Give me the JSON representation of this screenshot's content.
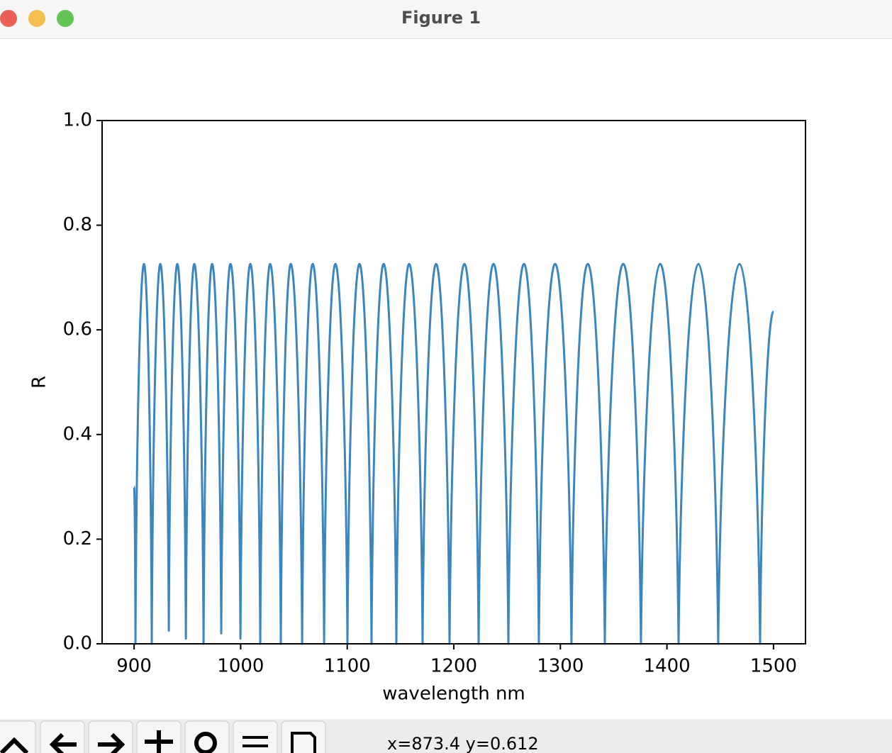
{
  "window": {
    "title": "Figure 1",
    "status": "x=873.4 y=0.612"
  },
  "chart_data": {
    "type": "line",
    "xlabel": "wavelength nm",
    "ylabel": "R",
    "xlim": [
      870,
      1530
    ],
    "ylim": [
      0,
      1
    ],
    "xticks": [
      900,
      1000,
      1100,
      1200,
      1300,
      1400,
      1500
    ],
    "yticks": [
      {
        "value": 0,
        "label": "0.0"
      },
      0.2,
      0.4,
      0.6,
      0.8,
      {
        "value": 1,
        "label": "1.0"
      }
    ],
    "grid": false,
    "series": [
      {
        "color": "#3c86bf",
        "x": [
          900,
          901.3,
          909.3,
          916.6,
          924.6,
          932.6,
          940.6,
          948.6,
          956.5,
          965.2,
          973.2,
          981.8,
          990.5,
          999.8,
          1009.1,
          1018.4,
          1027.7,
          1037.7,
          1047.0,
          1057.7,
          1067.6,
          1078.3,
          1088.9,
          1100.2,
          1111.5,
          1122.8,
          1134.2,
          1146.1,
          1158.1,
          1170.7,
          1183.4,
          1196.0,
          1210.0,
          1223.3,
          1237.3,
          1251.2,
          1265.9,
          1279.8,
          1295.1,
          1310.4,
          1325.7,
          1341.7,
          1359.0,
          1375.6,
          1393.6,
          1410.9,
          1429.5,
          1448.1,
          1468.1,
          1487.4,
          1500
        ],
        "values": [
          0.3,
          0,
          0.726,
          0,
          0.726,
          0.025,
          0.726,
          0.01,
          0.726,
          0,
          0.726,
          0.02,
          0.726,
          0.01,
          0.726,
          0,
          0.726,
          0,
          0.726,
          0,
          0.726,
          0,
          0.726,
          0,
          0.726,
          0,
          0.726,
          0,
          0.726,
          0,
          0.726,
          0,
          0.726,
          0,
          0.726,
          0,
          0.726,
          0,
          0.726,
          0,
          0.726,
          0,
          0.726,
          0,
          0.726,
          0,
          0.726,
          0,
          0.726,
          0,
          0.635
        ]
      }
    ]
  }
}
